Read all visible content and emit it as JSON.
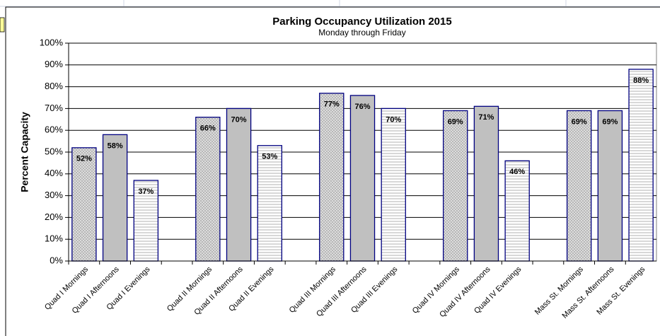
{
  "chart_data": {
    "type": "bar",
    "title": "Parking Occupancy Utilization 2015",
    "subtitle": "Monday through Friday",
    "y_label": "Percent Capacity",
    "categories": [
      "Quad I Mornings",
      "Quad I Afternoons",
      "Quad I Evenings",
      null,
      "Quad II Mornings",
      "Quad II Afternoons",
      "Quad II Evenings",
      null,
      "Quad III Mornings",
      "Quad III Afternoons",
      "Quad III Evenings",
      null,
      "Quad IV Mornings",
      "Quad IV Afternoons",
      "Quad IV Evenings",
      null,
      "Mass St. Mornings",
      "Mass St. Afternoons",
      "Mass St. Evenings"
    ],
    "values": [
      52,
      58,
      37,
      null,
      66,
      70,
      53,
      null,
      77,
      76,
      70,
      null,
      69,
      71,
      46,
      null,
      69,
      69,
      88
    ],
    "value_labels": [
      "52%",
      "58%",
      "37%",
      null,
      "66%",
      "70%",
      "53%",
      null,
      "77%",
      "76%",
      "70%",
      null,
      "69%",
      "71%",
      "46%",
      null,
      "69%",
      "69%",
      "88%"
    ],
    "fills": [
      "crosshatch",
      "solid",
      "lines",
      null,
      "crosshatch",
      "solid",
      "lines",
      null,
      "crosshatch",
      "solid",
      "lines",
      null,
      "crosshatch",
      "solid",
      "lines",
      null,
      "crosshatch",
      "solid",
      "lines"
    ],
    "color": "#000080",
    "ylim": [
      0,
      100
    ],
    "yticks": [
      {
        "value": 0,
        "label": "0%"
      },
      {
        "value": 10,
        "label": "10%"
      },
      {
        "value": 20,
        "label": "20%"
      },
      {
        "value": 30,
        "label": "30%"
      },
      {
        "value": 40,
        "label": "40%"
      },
      {
        "value": 50,
        "label": "50%"
      },
      {
        "value": 60,
        "label": "60%"
      },
      {
        "value": 70,
        "label": "70%"
      },
      {
        "value": 80,
        "label": "80%"
      },
      {
        "value": 90,
        "label": "90%"
      },
      {
        "value": 100,
        "label": "100%"
      }
    ],
    "grid": true
  }
}
